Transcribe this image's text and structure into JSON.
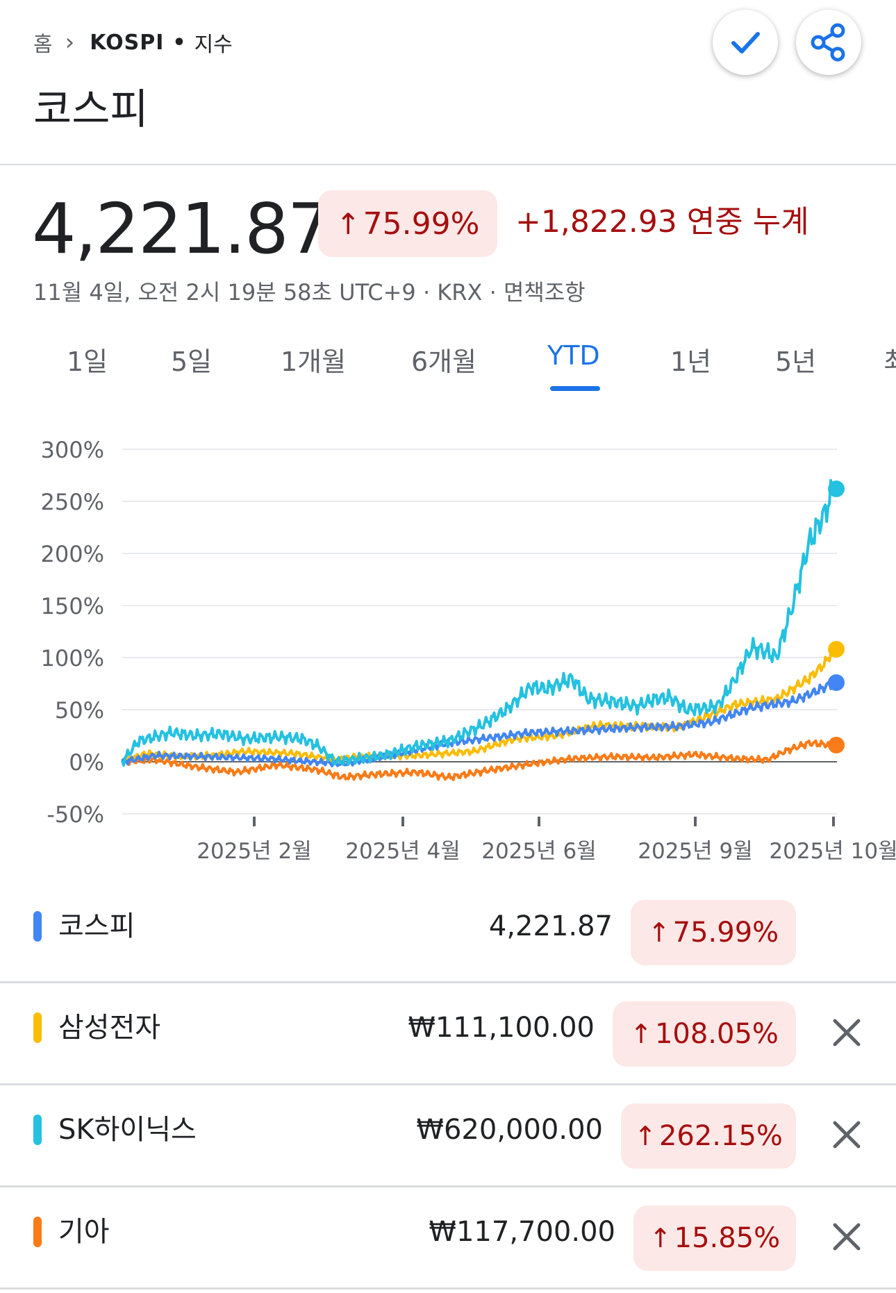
{
  "breadcrumb": {
    "home": "홈",
    "ticker": "KOSPI",
    "type": "지수"
  },
  "header": {
    "title": "코스피"
  },
  "icons": {
    "follow": "check-icon",
    "share": "share-icon",
    "breadcrumb_sep": "chevron-right-icon",
    "remove": "close-icon",
    "change_up": "arrow-up-icon"
  },
  "quote": {
    "price": "4,221.87",
    "change_pct": "75.99%",
    "change_text": "+1,822.93 연중 누계",
    "timestamp": "11월 4일, 오전 2시 19분 58초 UTC+9 · KRX · 면책조항"
  },
  "tabs": [
    "1일",
    "5일",
    "1개월",
    "6개월",
    "YTD",
    "1년",
    "5년",
    "최"
  ],
  "active_tab": "YTD",
  "colors": {
    "up": "#a50e0e",
    "up_bg": "#fce8e6",
    "accent": "#1a73e8",
    "kospi": "#4285f4",
    "samsung": "#fbbc04",
    "skhynix": "#24c1e0",
    "kia": "#fa7b17"
  },
  "chart_data": {
    "type": "line",
    "y_ticks": [
      "300%",
      "250%",
      "200%",
      "150%",
      "100%",
      "50%",
      "0%",
      "-50%"
    ],
    "ylim": [
      -50,
      300
    ],
    "x_ticks": [
      "2025년 2월",
      "2025년 4월",
      "2025년 6월",
      "2025년 9월",
      "2025년 10월"
    ],
    "grid": true,
    "series": [
      {
        "name": "코스피",
        "color": "#4285f4",
        "points": [
          [
            0,
            0
          ],
          [
            4,
            6
          ],
          [
            10,
            5
          ],
          [
            18,
            3
          ],
          [
            27,
            -2
          ],
          [
            32,
            5
          ],
          [
            40,
            18
          ],
          [
            50,
            28
          ],
          [
            56,
            30
          ],
          [
            63,
            33
          ],
          [
            68,
            34
          ],
          [
            72,
            38
          ],
          [
            77,
            52
          ],
          [
            82,
            58
          ],
          [
            85,
            68
          ],
          [
            87,
            76
          ]
        ]
      },
      {
        "name": "삼성전자",
        "color": "#fbbc04",
        "points": [
          [
            0,
            0
          ],
          [
            3,
            8
          ],
          [
            7,
            5
          ],
          [
            11,
            6
          ],
          [
            15,
            10
          ],
          [
            21,
            8
          ],
          [
            26,
            2
          ],
          [
            29,
            5
          ],
          [
            36,
            6
          ],
          [
            43,
            10
          ],
          [
            48,
            22
          ],
          [
            53,
            25
          ],
          [
            58,
            35
          ],
          [
            63,
            34
          ],
          [
            68,
            33
          ],
          [
            71,
            42
          ],
          [
            75,
            55
          ],
          [
            80,
            60
          ],
          [
            84,
            80
          ],
          [
            86,
            95
          ],
          [
            87,
            108
          ]
        ]
      },
      {
        "name": "SK하이닉스",
        "color": "#24c1e0",
        "points": [
          [
            0,
            0
          ],
          [
            2,
            20
          ],
          [
            6,
            28
          ],
          [
            9,
            25
          ],
          [
            12,
            27
          ],
          [
            15,
            22
          ],
          [
            19,
            24
          ],
          [
            22,
            22
          ],
          [
            24,
            15
          ],
          [
            26,
            0
          ],
          [
            28,
            2
          ],
          [
            32,
            6
          ],
          [
            36,
            15
          ],
          [
            40,
            20
          ],
          [
            44,
            35
          ],
          [
            47,
            50
          ],
          [
            50,
            72
          ],
          [
            52,
            70
          ],
          [
            55,
            80
          ],
          [
            57,
            60
          ],
          [
            60,
            58
          ],
          [
            63,
            53
          ],
          [
            65,
            60
          ],
          [
            67,
            62
          ],
          [
            69,
            50
          ],
          [
            72,
            52
          ],
          [
            73,
            55
          ],
          [
            75,
            80
          ],
          [
            77,
            110
          ],
          [
            79,
            105
          ],
          [
            80,
            100
          ],
          [
            82,
            150
          ],
          [
            84,
            210
          ],
          [
            86,
            240
          ],
          [
            87,
            262
          ]
        ]
      },
      {
        "name": "기아",
        "color": "#fa7b17",
        "points": [
          [
            0,
            0
          ],
          [
            4,
            2
          ],
          [
            9,
            -5
          ],
          [
            14,
            -10
          ],
          [
            19,
            -3
          ],
          [
            24,
            -8
          ],
          [
            27,
            -15
          ],
          [
            31,
            -12
          ],
          [
            36,
            -10
          ],
          [
            40,
            -15
          ],
          [
            45,
            -8
          ],
          [
            50,
            -2
          ],
          [
            55,
            3
          ],
          [
            60,
            5
          ],
          [
            65,
            4
          ],
          [
            70,
            7
          ],
          [
            75,
            3
          ],
          [
            79,
            2
          ],
          [
            81,
            10
          ],
          [
            84,
            18
          ],
          [
            87,
            16
          ]
        ]
      }
    ]
  },
  "comparison": [
    {
      "name": "코스피",
      "price": "4,221.87",
      "change": "75.99%",
      "removable": false
    },
    {
      "name": "삼성전자",
      "price": "₩111,100.00",
      "change": "108.05%",
      "removable": true
    },
    {
      "name": "SK하이닉스",
      "price": "₩620,000.00",
      "change": "262.15%",
      "removable": true
    },
    {
      "name": "기아",
      "price": "₩117,700.00",
      "change": "15.85%",
      "removable": true
    }
  ]
}
